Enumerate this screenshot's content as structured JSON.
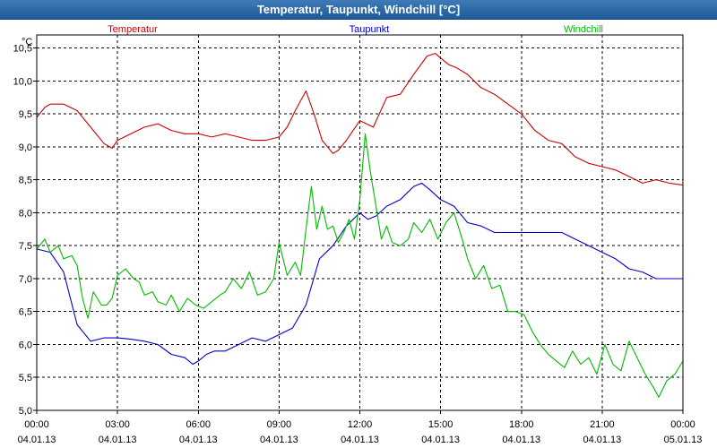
{
  "window": {
    "title": "Temperatur, Taupunkt, Windchill [°C]"
  },
  "chart_data": {
    "type": "line",
    "title": "Temperatur, Taupunkt, Windchill [°C]",
    "ylabel": "°C",
    "ylim": [
      5.0,
      10.7
    ],
    "yticks": [
      5.0,
      5.5,
      6.0,
      6.5,
      7.0,
      7.5,
      8.0,
      8.5,
      9.0,
      9.5,
      10.0,
      10.5
    ],
    "ytick_labels": [
      "5,0",
      "5,5",
      "6,0",
      "6,5",
      "7,0",
      "7,5",
      "8,0",
      "8,5",
      "9,0",
      "9,5",
      "10,0",
      "10,5"
    ],
    "xlim": [
      0,
      24
    ],
    "xticks": [
      0,
      3,
      6,
      9,
      12,
      15,
      18,
      21,
      24
    ],
    "xtick_time_labels": [
      "00:00",
      "03:00",
      "06:00",
      "09:00",
      "12:00",
      "15:00",
      "18:00",
      "21:00",
      "00:00"
    ],
    "xtick_date_labels": [
      "04.01.13",
      "04.01.13",
      "04.01.13",
      "04.01.13",
      "04.01.13",
      "04.01.13",
      "04.01.13",
      "04.01.13",
      "05.01.13"
    ],
    "grid": true,
    "series": [
      {
        "name": "Temperatur",
        "color": "#cc0000",
        "x": [
          0,
          0.3,
          0.5,
          1.0,
          1.5,
          2.0,
          2.5,
          2.8,
          3.0,
          3.5,
          4.0,
          4.5,
          5.0,
          5.5,
          6.0,
          6.5,
          7.0,
          7.5,
          8.0,
          8.5,
          9.0,
          9.3,
          9.6,
          10.0,
          10.3,
          10.6,
          11.0,
          11.2,
          11.5,
          12.0,
          12.5,
          13.0,
          13.5,
          14.0,
          14.5,
          14.8,
          15.0,
          15.3,
          15.6,
          16.0,
          16.5,
          17.0,
          17.5,
          18.0,
          18.5,
          19.0,
          19.5,
          20.0,
          20.5,
          21.0,
          21.5,
          22.0,
          22.5,
          23.0,
          23.5,
          24.0
        ],
        "y": [
          9.45,
          9.6,
          9.65,
          9.65,
          9.55,
          9.3,
          9.05,
          8.98,
          9.1,
          9.2,
          9.3,
          9.35,
          9.25,
          9.2,
          9.2,
          9.15,
          9.2,
          9.15,
          9.1,
          9.1,
          9.15,
          9.3,
          9.55,
          9.85,
          9.5,
          9.1,
          8.9,
          8.95,
          9.1,
          9.4,
          9.3,
          9.75,
          9.8,
          10.1,
          10.38,
          10.42,
          10.35,
          10.25,
          10.2,
          10.1,
          9.9,
          9.8,
          9.65,
          9.5,
          9.25,
          9.1,
          9.05,
          8.85,
          8.75,
          8.7,
          8.65,
          8.55,
          8.45,
          8.5,
          8.45,
          8.42
        ]
      },
      {
        "name": "Taupunkt",
        "color": "#0000cc",
        "x": [
          0,
          0.5,
          1.0,
          1.5,
          2.0,
          2.5,
          3.0,
          3.5,
          4.0,
          4.5,
          5.0,
          5.5,
          5.8,
          6.0,
          6.3,
          6.6,
          7.0,
          7.5,
          8.0,
          8.5,
          9.0,
          9.5,
          10.0,
          10.5,
          11.0,
          11.5,
          12.0,
          12.3,
          12.6,
          13.0,
          13.5,
          14.0,
          14.3,
          14.6,
          15.0,
          15.5,
          16.0,
          16.5,
          17.0,
          17.5,
          18.0,
          18.5,
          19.0,
          19.5,
          20.0,
          20.5,
          21.0,
          21.5,
          22.0,
          22.5,
          23.0,
          23.5,
          24.0
        ],
        "y": [
          7.45,
          7.4,
          7.1,
          6.3,
          6.05,
          6.1,
          6.1,
          6.08,
          6.05,
          6.0,
          5.85,
          5.8,
          5.7,
          5.75,
          5.85,
          5.9,
          5.9,
          6.0,
          6.1,
          6.05,
          6.15,
          6.25,
          6.6,
          7.3,
          7.5,
          7.8,
          8.0,
          7.9,
          7.95,
          8.1,
          8.2,
          8.4,
          8.45,
          8.35,
          8.2,
          8.1,
          7.85,
          7.8,
          7.7,
          7.7,
          7.7,
          7.7,
          7.7,
          7.7,
          7.6,
          7.5,
          7.4,
          7.3,
          7.15,
          7.1,
          7.0,
          7.0,
          7.0
        ]
      },
      {
        "name": "Windchill",
        "color": "#00bb00",
        "x": [
          0,
          0.3,
          0.5,
          0.8,
          1.0,
          1.3,
          1.5,
          1.7,
          1.9,
          2.1,
          2.4,
          2.6,
          2.8,
          3.0,
          3.3,
          3.6,
          3.8,
          4.0,
          4.3,
          4.5,
          4.8,
          5.0,
          5.3,
          5.6,
          5.9,
          6.2,
          6.5,
          6.8,
          7.0,
          7.3,
          7.6,
          7.9,
          8.2,
          8.5,
          8.8,
          9.0,
          9.3,
          9.6,
          9.8,
          10.0,
          10.2,
          10.4,
          10.6,
          10.8,
          11.0,
          11.2,
          11.4,
          11.6,
          11.8,
          12.0,
          12.2,
          12.4,
          12.6,
          12.8,
          13.0,
          13.2,
          13.5,
          13.8,
          14.0,
          14.3,
          14.6,
          14.9,
          15.2,
          15.5,
          15.8,
          16.0,
          16.3,
          16.6,
          16.9,
          17.2,
          17.5,
          17.8,
          18.1,
          18.4,
          18.7,
          19.0,
          19.3,
          19.6,
          19.9,
          20.2,
          20.5,
          20.8,
          21.1,
          21.4,
          21.7,
          22.0,
          22.3,
          22.6,
          22.9,
          23.1,
          23.4,
          23.7,
          24.0
        ],
        "y": [
          7.45,
          7.6,
          7.4,
          7.5,
          7.3,
          7.35,
          7.2,
          6.7,
          6.4,
          6.8,
          6.6,
          6.6,
          6.7,
          7.05,
          7.15,
          7.0,
          6.95,
          6.75,
          6.8,
          6.65,
          6.6,
          6.75,
          6.5,
          6.7,
          6.6,
          6.55,
          6.65,
          6.75,
          6.8,
          7.0,
          6.85,
          7.1,
          6.75,
          6.8,
          7.0,
          7.55,
          7.05,
          7.25,
          7.05,
          7.75,
          8.4,
          7.75,
          8.1,
          7.75,
          7.8,
          7.55,
          7.7,
          7.9,
          7.6,
          8.2,
          9.2,
          8.6,
          8.1,
          7.6,
          7.8,
          7.55,
          7.5,
          7.6,
          7.85,
          7.7,
          7.9,
          7.6,
          7.85,
          8.0,
          7.6,
          7.3,
          7.0,
          7.2,
          6.85,
          6.9,
          6.5,
          6.5,
          6.45,
          6.2,
          6.0,
          5.85,
          5.75,
          5.65,
          5.9,
          5.7,
          5.8,
          5.55,
          6.0,
          5.7,
          5.6,
          6.05,
          5.8,
          5.55,
          5.35,
          5.2,
          5.45,
          5.55,
          5.75
        ]
      }
    ]
  }
}
